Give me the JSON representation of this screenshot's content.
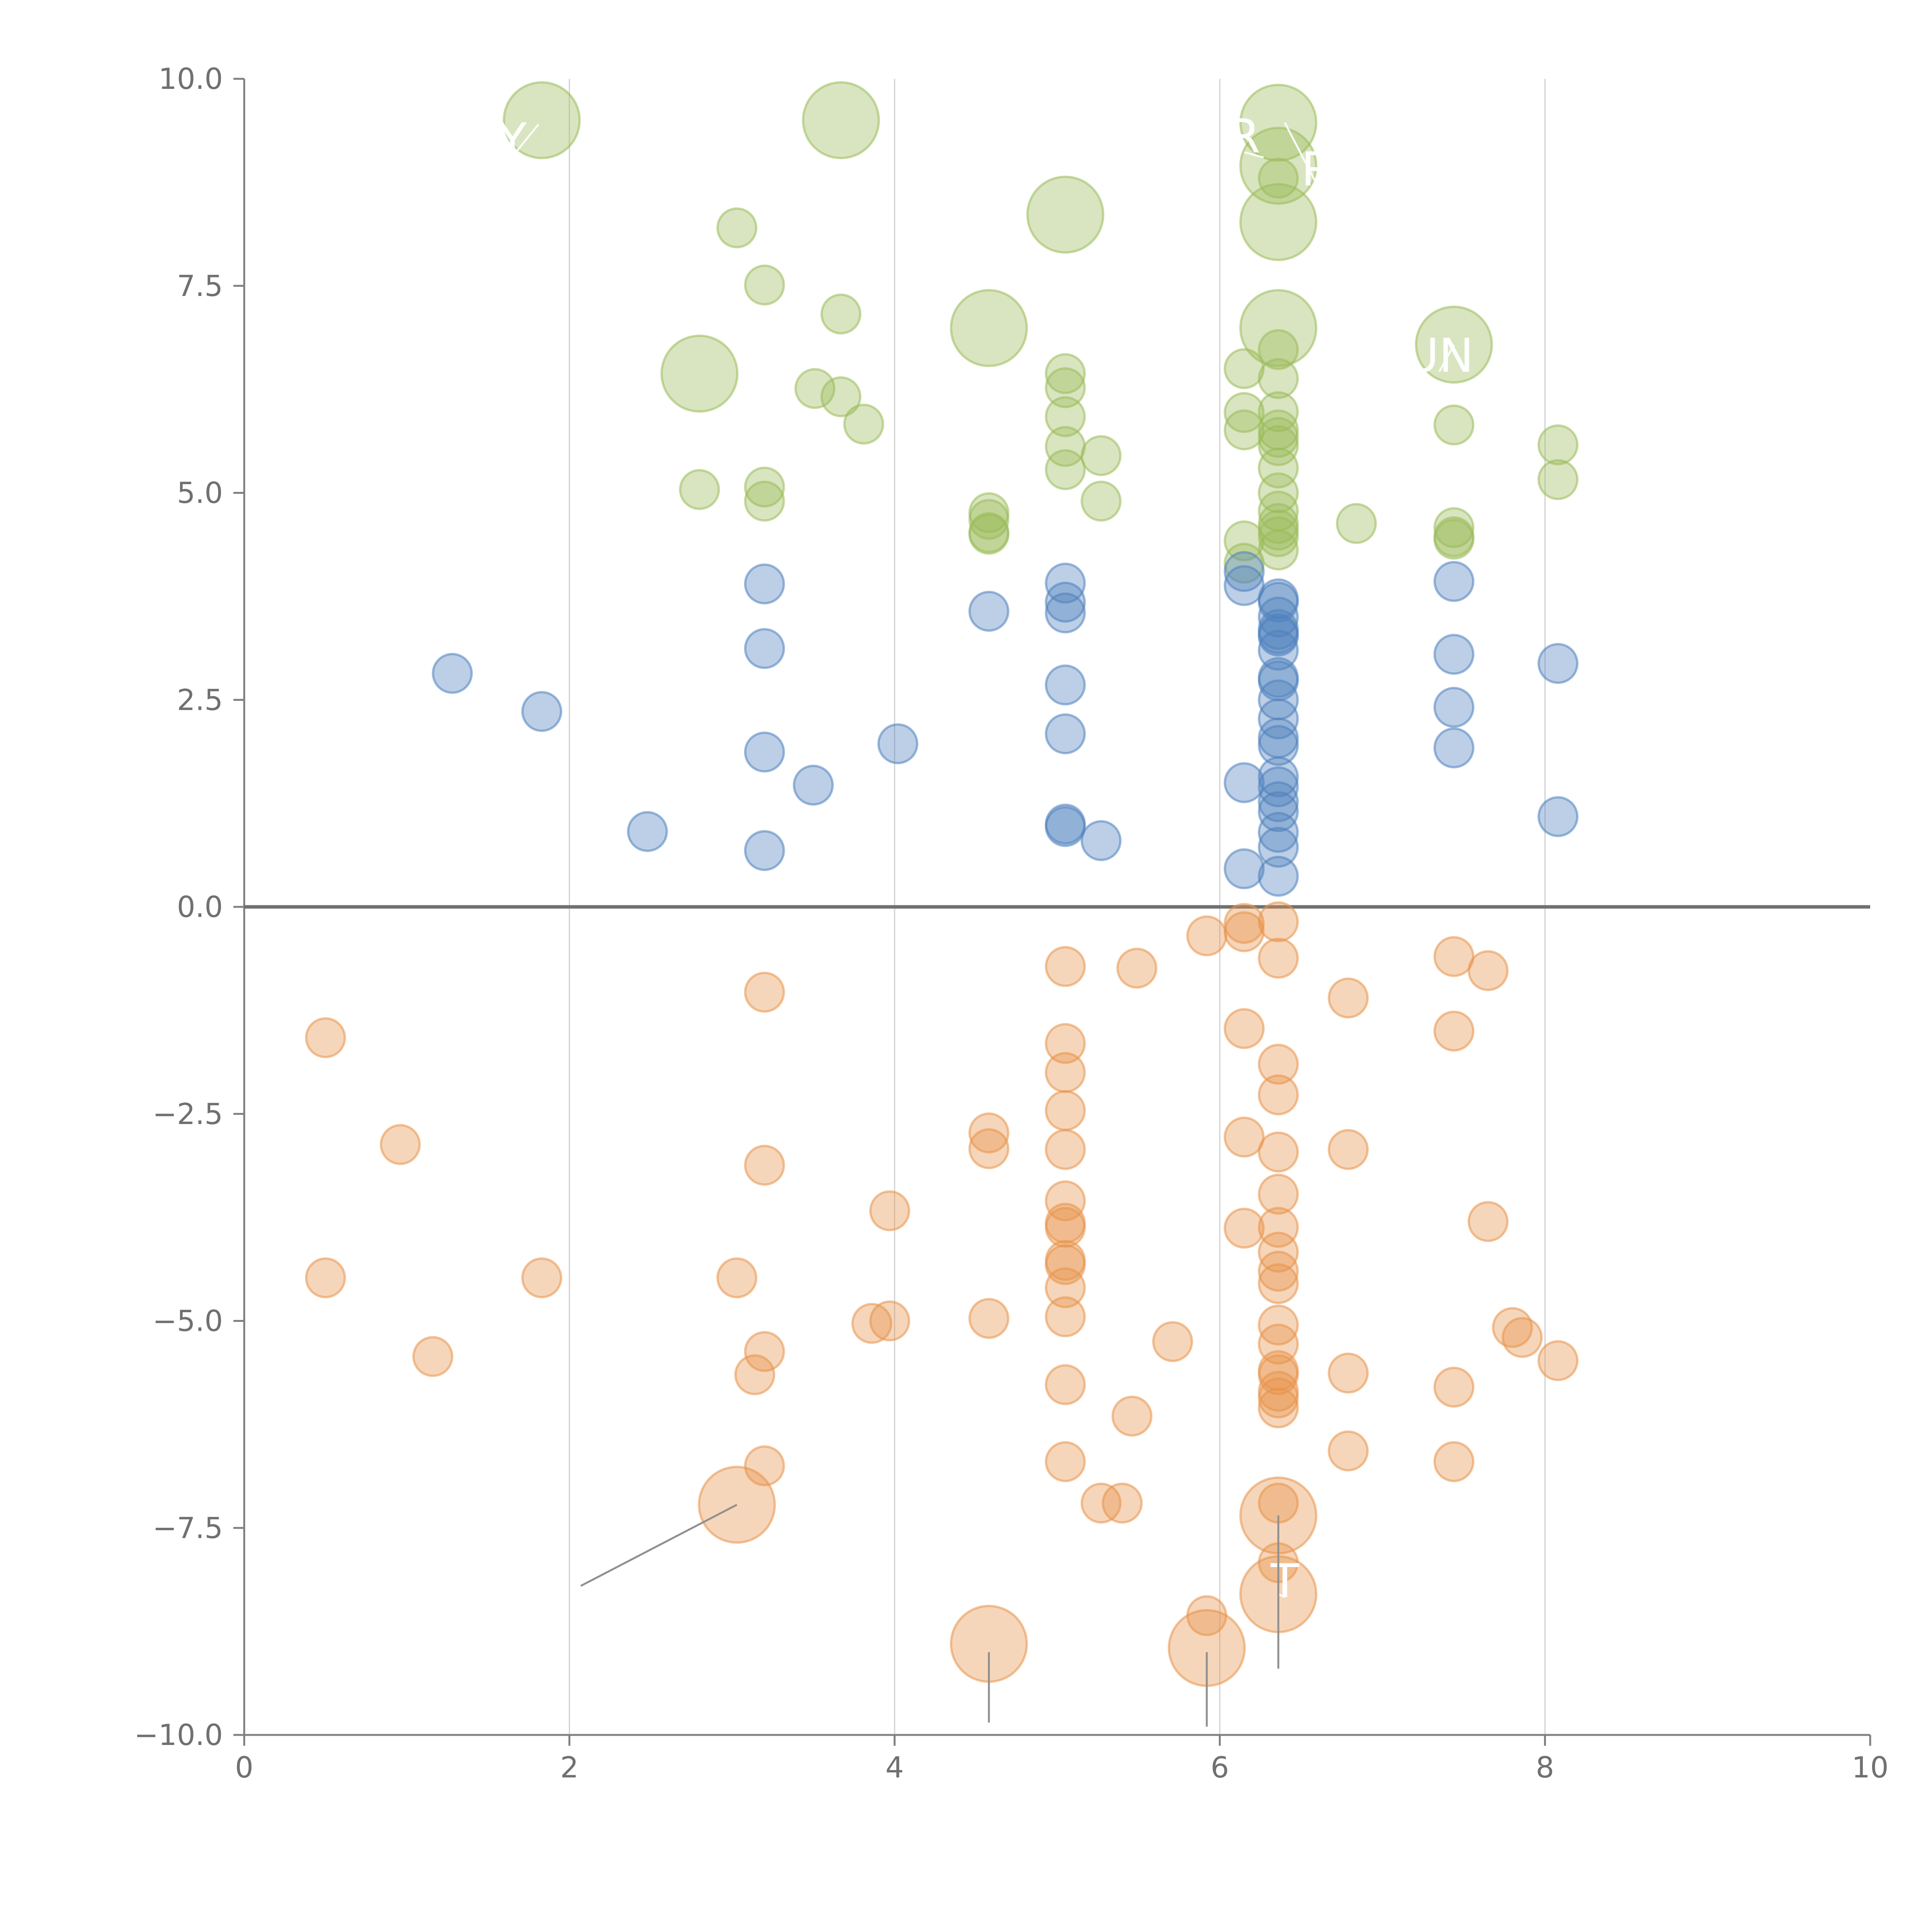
{
  "chart_data": {
    "type": "scatter",
    "title": "",
    "xlabel": "",
    "ylabel": "",
    "xlim": [
      0,
      10
    ],
    "ylim": [
      -10,
      10
    ],
    "x_ticks": [
      0,
      2,
      4,
      6,
      8,
      10
    ],
    "x_tick_labels": [
      "0",
      "2",
      "4",
      "6",
      "8",
      "10"
    ],
    "y_ticks": [
      10,
      7.5,
      5,
      2.5,
      0,
      -2.5,
      -5,
      -7.5,
      -10
    ],
    "y_tick_labels": [
      "10.0",
      "7.5",
      "5.0",
      "2.5",
      "0.0",
      "−2.5",
      "−5.0",
      "−7.5",
      "−10.0"
    ],
    "grid": "vertical",
    "zero_line": true,
    "colors": {
      "green": "#9bbb59",
      "blue": "#4f81bd",
      "orange": "#e8944a"
    },
    "series": [
      {
        "name": "green",
        "color": "#9bbb59",
        "points": [
          [
            1.83,
            9.5,
            "big"
          ],
          [
            3.67,
            9.5,
            "big"
          ],
          [
            6.36,
            9.47,
            "big"
          ],
          [
            6.36,
            8.95,
            "big"
          ],
          [
            5.05,
            8.36,
            "big"
          ],
          [
            6.36,
            8.27,
            "big"
          ],
          [
            4.58,
            6.99,
            "big"
          ],
          [
            6.36,
            6.99,
            "big"
          ],
          [
            7.44,
            6.79,
            "big"
          ],
          [
            2.8,
            6.44,
            "big"
          ],
          [
            3.03,
            8.2
          ],
          [
            3.2,
            7.51
          ],
          [
            3.67,
            7.16
          ],
          [
            3.51,
            6.26
          ],
          [
            3.67,
            6.16
          ],
          [
            3.81,
            5.83
          ],
          [
            2.8,
            5.04
          ],
          [
            3.2,
            5.07
          ],
          [
            3.2,
            4.9
          ],
          [
            4.58,
            4.76
          ],
          [
            4.58,
            4.68
          ],
          [
            4.58,
            4.52
          ],
          [
            4.58,
            4.5
          ],
          [
            5.05,
            6.44
          ],
          [
            5.05,
            6.27
          ],
          [
            5.05,
            5.92
          ],
          [
            5.05,
            5.56
          ],
          [
            5.05,
            5.28
          ],
          [
            5.27,
            5.45
          ],
          [
            5.27,
            4.9
          ],
          [
            6.15,
            6.5
          ],
          [
            6.15,
            5.97
          ],
          [
            6.15,
            5.76
          ],
          [
            6.15,
            4.42
          ],
          [
            6.15,
            4.15
          ],
          [
            6.36,
            8.8
          ],
          [
            6.36,
            6.73
          ],
          [
            6.36,
            6.38
          ],
          [
            6.36,
            5.98
          ],
          [
            6.36,
            5.76
          ],
          [
            6.36,
            5.67
          ],
          [
            6.36,
            5.57
          ],
          [
            6.36,
            5.3
          ],
          [
            6.36,
            5.0
          ],
          [
            6.36,
            4.78
          ],
          [
            6.36,
            4.63
          ],
          [
            6.36,
            4.55
          ],
          [
            6.36,
            4.47
          ],
          [
            6.36,
            4.31
          ],
          [
            6.84,
            4.63
          ],
          [
            7.44,
            5.82
          ],
          [
            7.44,
            4.58
          ],
          [
            7.44,
            4.47
          ],
          [
            7.44,
            4.44
          ],
          [
            8.08,
            5.58
          ],
          [
            8.08,
            5.16
          ]
        ]
      },
      {
        "name": "blue",
        "color": "#4f81bd",
        "points": [
          [
            1.28,
            2.82
          ],
          [
            1.83,
            2.36
          ],
          [
            2.48,
            0.91
          ],
          [
            3.2,
            3.9
          ],
          [
            3.2,
            3.12
          ],
          [
            3.2,
            1.87
          ],
          [
            3.2,
            0.68
          ],
          [
            3.5,
            1.47
          ],
          [
            4.02,
            1.97
          ],
          [
            4.58,
            3.57
          ],
          [
            5.05,
            3.91
          ],
          [
            5.05,
            3.68
          ],
          [
            5.05,
            3.55
          ],
          [
            5.05,
            2.68
          ],
          [
            5.05,
            2.09
          ],
          [
            5.05,
            1.0
          ],
          [
            5.05,
            0.97
          ],
          [
            5.27,
            0.8
          ],
          [
            6.15,
            4.05
          ],
          [
            6.15,
            3.88
          ],
          [
            6.15,
            1.5
          ],
          [
            6.15,
            0.46
          ],
          [
            6.36,
            3.72
          ],
          [
            6.36,
            3.68
          ],
          [
            6.36,
            3.5
          ],
          [
            6.36,
            3.35
          ],
          [
            6.36,
            3.3
          ],
          [
            6.36,
            3.27
          ],
          [
            6.36,
            3.1
          ],
          [
            6.36,
            2.77
          ],
          [
            6.36,
            2.73
          ],
          [
            6.36,
            2.5
          ],
          [
            6.36,
            2.27
          ],
          [
            6.36,
            2.04
          ],
          [
            6.36,
            1.95
          ],
          [
            6.36,
            1.57
          ],
          [
            6.36,
            1.45
          ],
          [
            6.36,
            1.27
          ],
          [
            6.36,
            1.15
          ],
          [
            6.36,
            0.9
          ],
          [
            6.36,
            0.72
          ],
          [
            6.36,
            0.37
          ],
          [
            7.44,
            3.93
          ],
          [
            7.44,
            3.05
          ],
          [
            7.44,
            2.41
          ],
          [
            7.44,
            1.92
          ],
          [
            8.08,
            2.94
          ],
          [
            8.08,
            1.09
          ]
        ]
      },
      {
        "name": "orange",
        "color": "#e8944a",
        "points": [
          [
            3.03,
            -7.22,
            "big"
          ],
          [
            6.36,
            -7.35,
            "big"
          ],
          [
            6.36,
            -8.3,
            "big"
          ],
          [
            4.58,
            -8.9,
            "big"
          ],
          [
            5.92,
            -8.95,
            "big"
          ],
          [
            0.5,
            -1.58
          ],
          [
            0.96,
            -2.87
          ],
          [
            0.5,
            -4.48
          ],
          [
            1.16,
            -5.43
          ],
          [
            1.83,
            -4.48
          ],
          [
            3.2,
            -1.03
          ],
          [
            3.2,
            -3.12
          ],
          [
            3.03,
            -4.48
          ],
          [
            3.2,
            -5.37
          ],
          [
            3.14,
            -5.65
          ],
          [
            3.2,
            -6.75
          ],
          [
            3.97,
            -3.67
          ],
          [
            3.86,
            -5.03
          ],
          [
            3.97,
            -5.0
          ],
          [
            4.58,
            -2.73
          ],
          [
            4.58,
            -2.92
          ],
          [
            4.58,
            -4.97
          ],
          [
            5.05,
            -0.72
          ],
          [
            5.05,
            -1.65
          ],
          [
            5.05,
            -2.0
          ],
          [
            5.05,
            -2.46
          ],
          [
            5.05,
            -2.93
          ],
          [
            5.05,
            -3.55
          ],
          [
            5.05,
            -3.82
          ],
          [
            5.05,
            -3.87
          ],
          [
            5.05,
            -4.27
          ],
          [
            5.05,
            -4.32
          ],
          [
            5.05,
            -4.6
          ],
          [
            5.05,
            -4.95
          ],
          [
            5.05,
            -5.77
          ],
          [
            5.05,
            -6.7
          ],
          [
            5.27,
            -7.2
          ],
          [
            5.4,
            -7.2
          ],
          [
            5.49,
            -0.74
          ],
          [
            5.46,
            -6.15
          ],
          [
            5.71,
            -5.25
          ],
          [
            5.92,
            -0.35
          ],
          [
            5.92,
            -8.56
          ],
          [
            6.15,
            -0.2
          ],
          [
            6.15,
            -0.3
          ],
          [
            6.15,
            -1.47
          ],
          [
            6.15,
            -2.78
          ],
          [
            6.15,
            -3.88
          ],
          [
            6.36,
            -0.18
          ],
          [
            6.36,
            -0.62
          ],
          [
            6.36,
            -1.9
          ],
          [
            6.36,
            -2.27
          ],
          [
            6.36,
            -2.96
          ],
          [
            6.36,
            -3.47
          ],
          [
            6.36,
            -3.87
          ],
          [
            6.36,
            -4.17
          ],
          [
            6.36,
            -4.4
          ],
          [
            6.36,
            -4.55
          ],
          [
            6.36,
            -5.05
          ],
          [
            6.36,
            -5.28
          ],
          [
            6.36,
            -5.6
          ],
          [
            6.36,
            -5.65
          ],
          [
            6.36,
            -5.85
          ],
          [
            6.36,
            -5.93
          ],
          [
            6.36,
            -6.05
          ],
          [
            6.36,
            -7.2
          ],
          [
            6.36,
            -7.92
          ],
          [
            6.79,
            -1.1
          ],
          [
            6.79,
            -2.93
          ],
          [
            6.79,
            -5.63
          ],
          [
            6.79,
            -6.57
          ],
          [
            7.44,
            -0.6
          ],
          [
            7.44,
            -1.5
          ],
          [
            7.44,
            -5.8
          ],
          [
            7.44,
            -6.7
          ],
          [
            7.65,
            -0.77
          ],
          [
            7.65,
            -3.8
          ],
          [
            7.8,
            -5.08
          ],
          [
            7.86,
            -5.2
          ],
          [
            8.08,
            -5.48
          ]
        ]
      }
    ],
    "annotations": [
      {
        "text": "Y",
        "x": 1.65,
        "y": 9.25,
        "anchor_x": 1.81,
        "anchor_y": 9.45
      },
      {
        "text": "R",
        "x": 6.15,
        "y": 9.3,
        "anchor_x": 6.27,
        "anchor_y": 9.05
      },
      {
        "text": "R",
        "x": 6.6,
        "y": 8.9,
        "anchor_x": 6.4,
        "anchor_y": 9.47
      },
      {
        "text": "UN",
        "x": 7.35,
        "y": 6.65,
        "anchor_x": 7.44,
        "anchor_y": 6.79
      },
      {
        "text": "T",
        "x": 6.4,
        "y": -8.15,
        "anchor_x": 6.36,
        "anchor_y": -8.3
      }
    ]
  }
}
